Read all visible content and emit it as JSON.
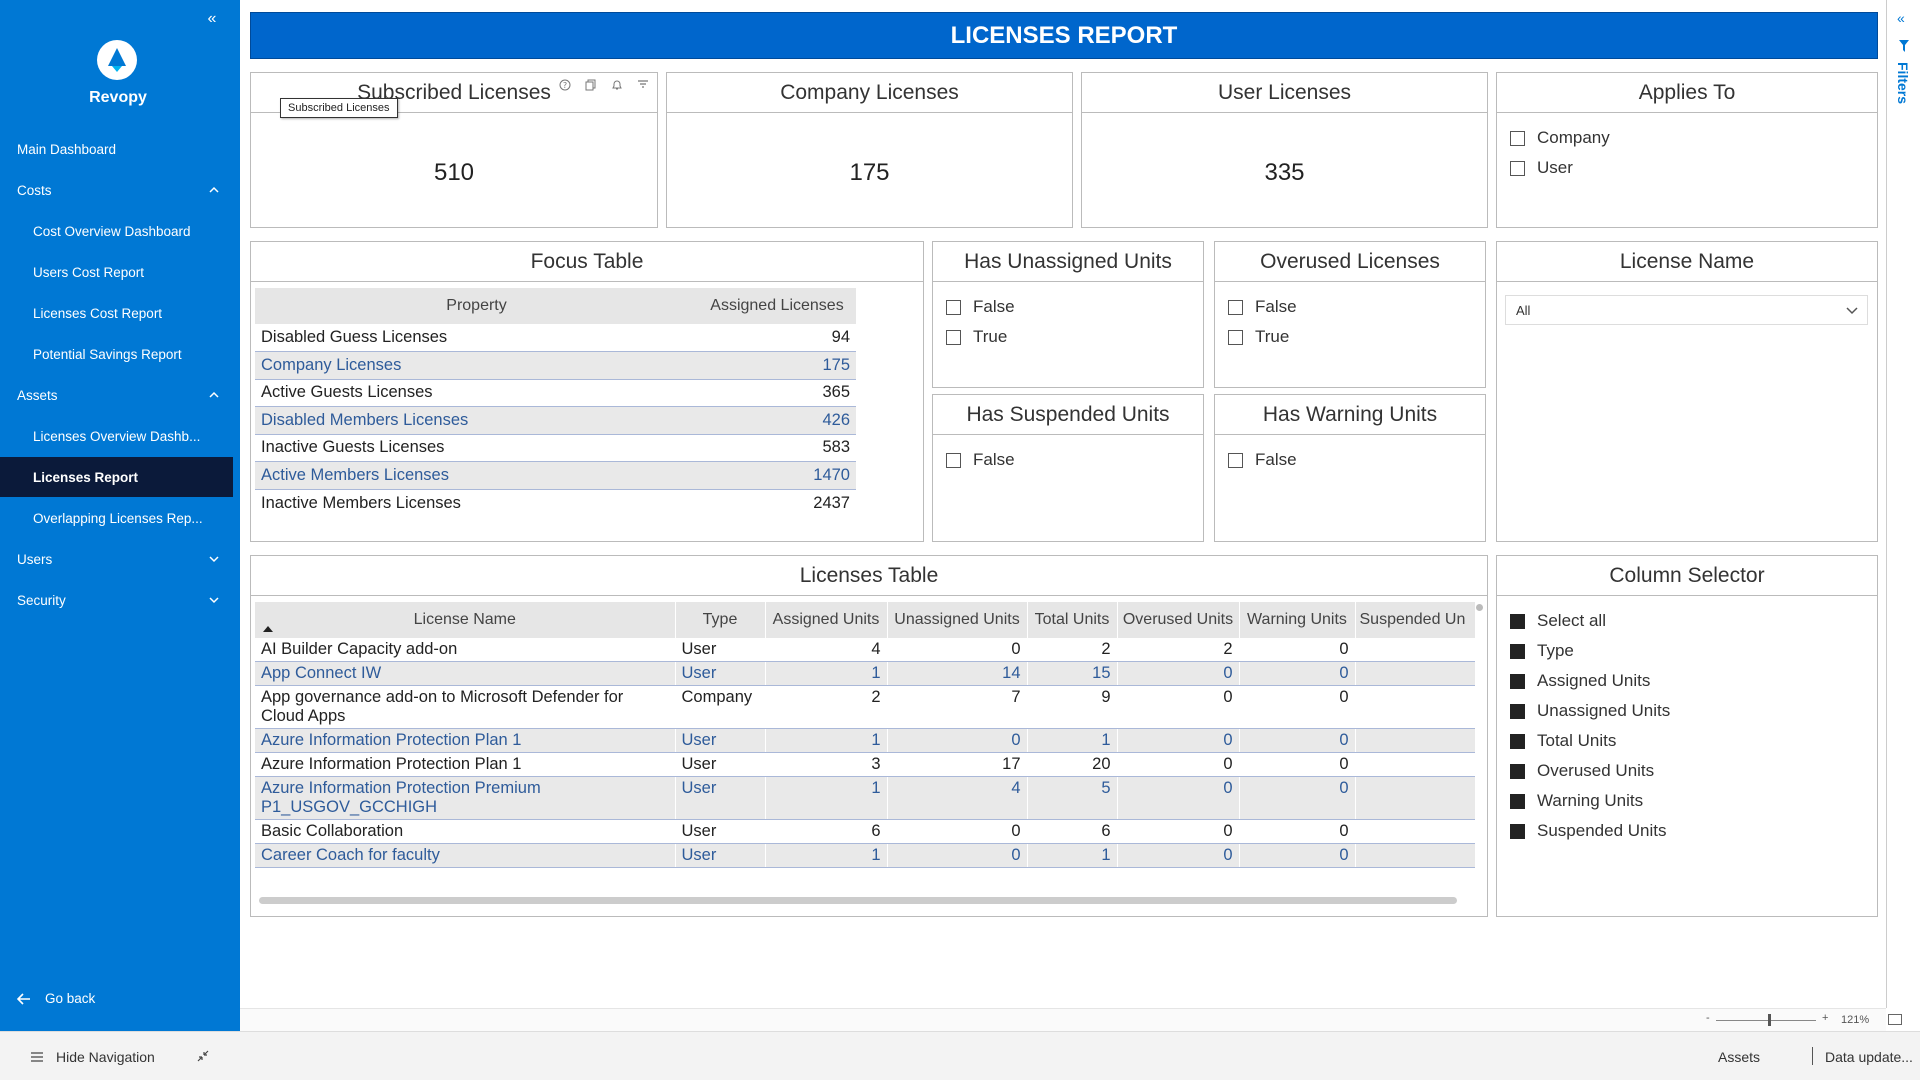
{
  "brand": {
    "name": "Revopy"
  },
  "sidebar": {
    "items": [
      {
        "label": "Main Dashboard"
      },
      {
        "label": "Costs"
      },
      {
        "label": "Cost Overview Dashboard"
      },
      {
        "label": "Users Cost Report"
      },
      {
        "label": "Licenses Cost Report"
      },
      {
        "label": "Potential Savings Report"
      },
      {
        "label": "Assets"
      },
      {
        "label": "Licenses Overview Dashb..."
      },
      {
        "label": "Licenses Report"
      },
      {
        "label": "Overlapping Licenses Rep..."
      },
      {
        "label": "Users"
      },
      {
        "label": "Security"
      }
    ],
    "go_back": "Go back"
  },
  "report": {
    "title": "LICENSES REPORT"
  },
  "kpis": {
    "subscribed": {
      "title": "Subscribed Licenses",
      "value": "510",
      "tooltip": "Subscribed Licenses"
    },
    "company": {
      "title": "Company Licenses",
      "value": "175"
    },
    "user": {
      "title": "User Licenses",
      "value": "335"
    }
  },
  "slicers": {
    "applies_to": {
      "title": "Applies To",
      "options": [
        "Company",
        "User"
      ]
    },
    "has_unassigned": {
      "title": "Has Unassigned Units",
      "options": [
        "False",
        "True"
      ]
    },
    "overused": {
      "title": "Overused Licenses",
      "options": [
        "False",
        "True"
      ]
    },
    "has_suspended": {
      "title": "Has Suspended Units",
      "options": [
        "False"
      ]
    },
    "has_warning": {
      "title": "Has Warning Units",
      "options": [
        "False"
      ]
    },
    "license_name": {
      "title": "License Name",
      "selected": "All"
    },
    "column_selector": {
      "title": "Column Selector",
      "options": [
        "Select all",
        "Type",
        "Assigned Units",
        "Unassigned Units",
        "Total Units",
        "Overused Units",
        "Warning Units",
        "Suspended Units"
      ]
    }
  },
  "focus_table": {
    "title": "Focus Table",
    "headers": [
      "Property",
      "Assigned Licenses"
    ],
    "rows": [
      [
        "Disabled Guess Licenses",
        "94"
      ],
      [
        "Company Licenses",
        "175"
      ],
      [
        "Active Guests Licenses",
        "365"
      ],
      [
        "Disabled Members Licenses",
        "426"
      ],
      [
        "Inactive Guests Licenses",
        "583"
      ],
      [
        "Active Members Licenses",
        "1470"
      ],
      [
        "Inactive Members Licenses",
        "2437"
      ]
    ]
  },
  "licenses_table": {
    "title": "Licenses Table",
    "headers": [
      "License Name",
      "Type",
      "Assigned Units",
      "Unassigned Units",
      "Total Units",
      "Overused Units",
      "Warning Units",
      "Suspended Un"
    ],
    "rows": [
      [
        "AI Builder Capacity add-on",
        "User",
        "4",
        "0",
        "2",
        "2",
        "0",
        ""
      ],
      [
        "App Connect IW",
        "User",
        "1",
        "14",
        "15",
        "0",
        "0",
        ""
      ],
      [
        "App governance add-on to Microsoft Defender for Cloud Apps",
        "Company",
        "2",
        "7",
        "9",
        "0",
        "0",
        ""
      ],
      [
        "Azure Information Protection Plan 1",
        "User",
        "1",
        "0",
        "1",
        "0",
        "0",
        ""
      ],
      [
        "Azure Information Protection Plan 1",
        "User",
        "3",
        "17",
        "20",
        "0",
        "0",
        ""
      ],
      [
        "Azure Information Protection Premium P1_USGOV_GCCHIGH",
        "User",
        "1",
        "4",
        "5",
        "0",
        "0",
        ""
      ],
      [
        "Basic Collaboration",
        "User",
        "6",
        "0",
        "6",
        "0",
        "0",
        ""
      ],
      [
        "Career Coach for faculty",
        "User",
        "1",
        "0",
        "1",
        "0",
        "0",
        ""
      ]
    ]
  },
  "filters_pane": {
    "label": "Filters"
  },
  "zoom": {
    "level": "121%",
    "minus": "-",
    "plus": "+"
  },
  "bottom_bar": {
    "hide_nav": "Hide Navigation",
    "assets": "Assets",
    "data_update": "Data update..."
  },
  "colors": {
    "sidebar": "#0078d4",
    "active_nav": "#0b1a3a",
    "header": "#0066cc"
  }
}
